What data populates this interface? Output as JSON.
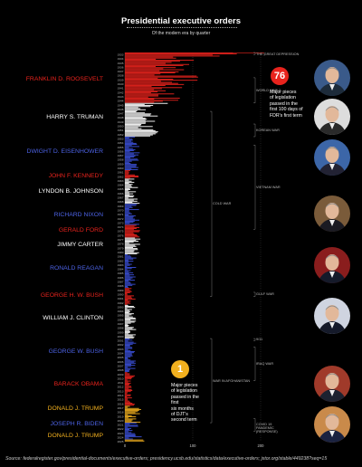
{
  "header": {
    "title": "Presidential executive orders",
    "subtitle": "Of the modern era by quarter"
  },
  "source": "Source: federalregister.gov/presidential-documents/executive-orders; presidency.ucsb.edu/statistics/data/executive-orders; jstor.org/stable/449238?seq=15",
  "callouts": {
    "fdr": {
      "number": "76",
      "text": [
        "Major pieces",
        "of legislation",
        "passed in the",
        "first 100 days of",
        "FDR's first term"
      ]
    },
    "trump": {
      "number": "1",
      "text": [
        "Major pieces",
        "of legislation",
        "passed in the",
        "first",
        "six months",
        "of DJT's",
        "second term"
      ]
    }
  },
  "presidents": [
    {
      "name": "FRANKLIN D. ROOSEVELT",
      "start": 1933,
      "end": 1945,
      "color": "#e8231d"
    },
    {
      "name": "HARRY S. TRUMAN",
      "start": 1945,
      "end": 1953,
      "color": "#ffffff"
    },
    {
      "name": "DWIGHT D. EISENHOWER",
      "start": 1953,
      "end": 1961,
      "color": "#3a4fd6"
    },
    {
      "name": "JOHN F. KENNEDY",
      "start": 1961,
      "end": 1963,
      "color": "#e8231d"
    },
    {
      "name": "LYNDON B. JOHNSON",
      "start": 1963,
      "end": 1969,
      "color": "#ffffff"
    },
    {
      "name": "RICHARD NIXON",
      "start": 1969,
      "end": 1974,
      "color": "#3a4fd6"
    },
    {
      "name": "GERALD FORD",
      "start": 1974,
      "end": 1977,
      "color": "#e8231d"
    },
    {
      "name": "JIMMY CARTER",
      "start": 1977,
      "end": 1981,
      "color": "#ffffff"
    },
    {
      "name": "RONALD REAGAN",
      "start": 1981,
      "end": 1989,
      "color": "#3a4fd6"
    },
    {
      "name": "GEORGE H. W. BUSH",
      "start": 1989,
      "end": 1993,
      "color": "#e8231d"
    },
    {
      "name": "WILLIAM J. CLINTON",
      "start": 1993,
      "end": 2001,
      "color": "#ffffff"
    },
    {
      "name": "GEORGE W. BUSH",
      "start": 2001,
      "end": 2009,
      "color": "#3a4fd6"
    },
    {
      "name": "BARACK OBAMA",
      "start": 2009,
      "end": 2017,
      "color": "#e8231d"
    },
    {
      "name": "DONALD J. TRUMP",
      "start": 2017,
      "end": 2021,
      "color": "#f2b01e"
    },
    {
      "name": "JOSEPH R. BIDEN",
      "start": 2021,
      "end": 2025,
      "color": "#3a4fd6"
    },
    {
      "name": "DONALD J. TRUMP",
      "start": 2025,
      "end": 2025.5,
      "color": "#f2b01e"
    }
  ],
  "events": [
    {
      "label": "THE GREAT DEPRESSION",
      "start": 1933,
      "end": 1933
    },
    {
      "label": "WORLD WAR 2",
      "start": 1939,
      "end": 1945
    },
    {
      "label": "KOREAN WAR",
      "start": 1950,
      "end": 1953
    },
    {
      "label": "VIETNAM WAR",
      "start": 1955,
      "end": 1975
    },
    {
      "label": "COLD WAR",
      "start": 1947,
      "end": 1991
    },
    {
      "label": "GULF WAR",
      "start": 1990,
      "end": 1991
    },
    {
      "label": "9/11",
      "start": 2001,
      "end": 2001
    },
    {
      "label": "IRAQ WAR",
      "start": 2003,
      "end": 2011
    },
    {
      "label": "WAR IN AFGHANISTAN",
      "start": 2001,
      "end": 2021
    },
    {
      "label": "COVID 19 PANDEMIC (RESPONSE)",
      "start": 2020,
      "end": 2023
    }
  ],
  "portraits": [
    {
      "name": "Franklin D. Roosevelt",
      "suit": "#1d2b3a",
      "bg": "#3a5a8a"
    },
    {
      "name": "Harry S. Truman",
      "suit": "#2a2a2a",
      "bg": "#ddd"
    },
    {
      "name": "Dwight D. Eisenhower",
      "suit": "#223",
      "bg": "#3c66a8"
    },
    {
      "name": "Richard Nixon",
      "suit": "#1a1a22",
      "bg": "#7a5b3a"
    },
    {
      "name": "Ronald Reagan",
      "suit": "#151a2a",
      "bg": "#8a1d1d"
    },
    {
      "name": "William J. Clinton",
      "suit": "#151a2a",
      "bg": "#cfd4e0"
    },
    {
      "name": "Barack Obama",
      "suit": "#1c2230",
      "bg": "#a03a2a"
    },
    {
      "name": "Joseph R. Biden",
      "suit": "#1a2240",
      "bg": "#c98a4a"
    }
  ],
  "chart_data": {
    "type": "bar",
    "orientation": "horizontal",
    "title": "Presidential executive orders",
    "subtitle": "Of the modern era by quarter",
    "xlim": [
      0,
      200
    ],
    "x_ticks": [
      "0",
      "100",
      "200"
    ],
    "year_start": 1933,
    "year_end": 2025,
    "quarterly_values_note": "values per quarter, estimated",
    "peaks": {
      "fdr_max": 200,
      "fdr_typical": 85,
      "truman_typical": 40,
      "later_typical": 15
    }
  }
}
